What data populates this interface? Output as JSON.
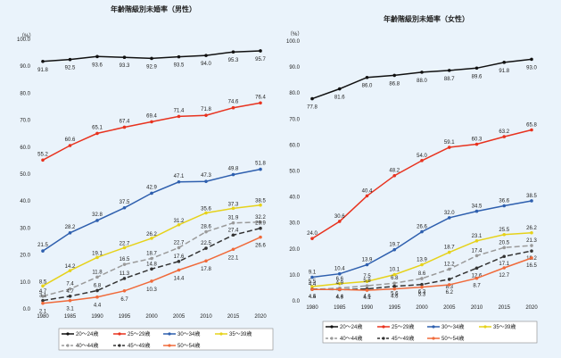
{
  "chart_data": [
    {
      "type": "line",
      "title": "年齢階級別未婚率（男性）",
      "ylabel": "（%）",
      "x": [
        "1980",
        "1985",
        "1990",
        "1995",
        "2000",
        "2005",
        "2010",
        "2015",
        "2020"
      ],
      "ylim": [
        0,
        100
      ],
      "yticks": [
        "0.0",
        "10.0",
        "20.0",
        "30.0",
        "40.0",
        "50.0",
        "60.0",
        "70.0",
        "80.0",
        "90.0",
        "100.0"
      ],
      "grid": false,
      "legend": "bottom",
      "series": [
        {
          "name": "20～24歳",
          "color": "#111111",
          "dash": "",
          "values": [
            91.8,
            92.5,
            93.6,
            93.3,
            92.9,
            93.5,
            94.0,
            95.3,
            95.7
          ],
          "labels": [
            "91.8",
            "92.5",
            "93.6",
            "93.3",
            "92.9",
            "93.5",
            "94.0",
            "95.3",
            "95.7"
          ]
        },
        {
          "name": "25～29歳",
          "color": "#e8321e",
          "dash": "",
          "values": [
            55.2,
            60.6,
            65.1,
            67.4,
            69.4,
            71.4,
            71.8,
            74.6,
            76.4
          ],
          "labels": [
            "55.2",
            "60.6",
            "65.1",
            "67.4",
            "69.4",
            "71.4",
            "71.8",
            "74.6",
            "76.4"
          ]
        },
        {
          "name": "30～34歳",
          "color": "#2e5fae",
          "dash": "",
          "values": [
            21.5,
            28.2,
            32.8,
            37.5,
            42.9,
            47.1,
            47.3,
            49.8,
            51.8
          ],
          "labels": [
            "21.5",
            "28.2",
            "32.8",
            "37.5",
            "42.9",
            "47.1",
            "47.3",
            "49.8",
            "51.8"
          ]
        },
        {
          "name": "35～39歳",
          "color": "#e6d21a",
          "dash": "",
          "values": [
            8.5,
            14.2,
            19.1,
            22.7,
            26.2,
            31.2,
            35.6,
            37.3,
            38.5
          ],
          "labels": [
            "8.5",
            "14.2",
            "19.1",
            "22.7",
            "26.2",
            "31.2",
            "35.6",
            "37.3",
            "38.5"
          ]
        },
        {
          "name": "40～44歳",
          "color": "#9a9a9a",
          "dash": "6,3",
          "values": [
            4.7,
            7.4,
            11.8,
            16.5,
            18.7,
            22.7,
            28.6,
            31.9,
            32.2
          ],
          "labels": [
            "4.7",
            "7.4",
            "11.8",
            "16.5",
            "18.7",
            "22.7",
            "28.6",
            "31.9",
            "32.2"
          ]
        },
        {
          "name": "45～49歳",
          "color": "#333333",
          "dash": "6,3",
          "values": [
            3.1,
            4.7,
            6.8,
            11.3,
            14.8,
            17.6,
            22.5,
            27.4,
            29.9
          ],
          "labels": [
            "3.1",
            "4.7",
            "6.8",
            "11.3",
            "14.8",
            "17.6",
            "22.5",
            "27.4",
            "29.9"
          ]
        },
        {
          "name": "50～54歳",
          "color": "#f06a3a",
          "dash": "",
          "values": [
            2.1,
            3.1,
            4.4,
            6.7,
            10.3,
            14.4,
            17.8,
            22.1,
            26.6
          ],
          "labels": [
            "2.1",
            "3.1",
            "4.4",
            "6.7",
            "10.3",
            "14.4",
            "17.8",
            "22.1",
            "26.6"
          ]
        }
      ]
    },
    {
      "type": "line",
      "title": "年齢階級別未婚率（女性）",
      "ylabel": "（%）",
      "x": [
        "1980",
        "1985",
        "1990",
        "1995",
        "2000",
        "2005",
        "2010",
        "2015",
        "2020"
      ],
      "ylim": [
        0,
        100
      ],
      "yticks": [
        "0.0",
        "10.0",
        "20.0",
        "30.0",
        "40.0",
        "50.0",
        "60.0",
        "70.0",
        "80.0",
        "90.0",
        "100.0"
      ],
      "grid": false,
      "legend": "bottom",
      "series": [
        {
          "name": "20～24歳",
          "color": "#111111",
          "dash": "",
          "values": [
            77.8,
            81.6,
            86.0,
            86.8,
            88.0,
            88.7,
            89.6,
            91.8,
            93.0
          ],
          "labels": [
            "77.8",
            "81.6",
            "86.0",
            "86.8",
            "88.0",
            "88.7",
            "89.6",
            "91.8",
            "93.0"
          ]
        },
        {
          "name": "25～29歳",
          "color": "#e8321e",
          "dash": "",
          "values": [
            24.0,
            30.6,
            40.4,
            48.2,
            54.0,
            59.1,
            60.3,
            63.2,
            65.8
          ],
          "labels": [
            "24.0",
            "30.6",
            "40.4",
            "48.2",
            "54.0",
            "59.1",
            "60.3",
            "63.2",
            "65.8"
          ]
        },
        {
          "name": "30～34歳",
          "color": "#2e5fae",
          "dash": "",
          "values": [
            9.1,
            10.4,
            13.9,
            19.7,
            26.6,
            32.0,
            34.5,
            36.6,
            38.5
          ],
          "labels": [
            "9.1",
            "10.4",
            "13.9",
            "19.7",
            "26.6",
            "32.0",
            "34.5",
            "36.6",
            "38.5"
          ]
        },
        {
          "name": "35～39歳",
          "color": "#e6d21a",
          "dash": "",
          "values": [
            5.5,
            6.6,
            7.5,
            10.1,
            13.9,
            18.7,
            23.1,
            25.5,
            26.2
          ],
          "labels": [
            "5.5",
            "6.6",
            "7.5",
            "10.1",
            "13.9",
            "18.7",
            "23.1",
            "25.5",
            "26.2"
          ]
        },
        {
          "name": "40～44歳",
          "color": "#9a9a9a",
          "dash": "6,3",
          "values": [
            4.4,
            4.9,
            5.8,
            6.8,
            8.6,
            12.2,
            17.4,
            20.5,
            21.3
          ],
          "labels": [
            "4.4",
            "4.9",
            "5.8",
            "6.8",
            "8.6",
            "12.2",
            "17.4",
            "20.5",
            "21.3"
          ]
        },
        {
          "name": "45～49歳",
          "color": "#333333",
          "dash": "6,3",
          "values": [
            4.5,
            4.3,
            4.6,
            5.6,
            6.3,
            8.3,
            12.6,
            17.1,
            19.2
          ],
          "labels": [
            "4.5",
            "4.3",
            "4.6",
            "5.6",
            "6.3",
            "8.3",
            "12.6",
            "17.1",
            "19.2"
          ]
        },
        {
          "name": "50～54歳",
          "color": "#f06a3a",
          "dash": "",
          "values": [
            4.4,
            4.4,
            4.1,
            4.6,
            5.3,
            6.2,
            8.7,
            12.7,
            16.5
          ],
          "labels": [
            "4.4",
            "4.4",
            "4.1",
            "4.6",
            "5.3",
            "6.2",
            "8.7",
            "12.7",
            "16.5"
          ]
        }
      ]
    }
  ]
}
